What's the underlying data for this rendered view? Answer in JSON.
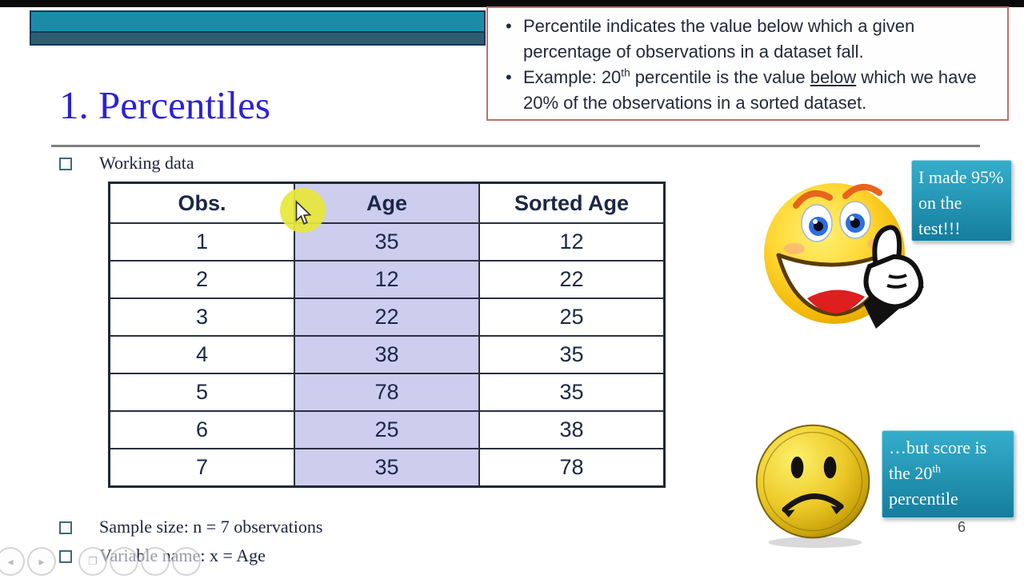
{
  "slide": {
    "title": "1. Percentiles",
    "page_number": "6",
    "definition_box": {
      "bullet1": "Percentile indicates the value below which a given percentage of observations in a dataset fall.",
      "bullet2_segments": [
        {
          "text": "Example: 20"
        },
        {
          "text": "th",
          "style": "sup"
        },
        {
          "text": " percentile is the value "
        },
        {
          "text": "below",
          "style": "underline"
        },
        {
          "text": " which we have 20% of the observations in a sorted dataset."
        }
      ]
    },
    "bullets": {
      "working_data": "Working data",
      "sample_size": "Sample size: n = 7 observations",
      "variable_name": "Variable name: x = Age"
    },
    "table": {
      "headers": [
        "Obs.",
        "Age",
        "Sorted Age"
      ],
      "rows": [
        [
          "1",
          "35",
          "12"
        ],
        [
          "2",
          "12",
          "22"
        ],
        [
          "3",
          "22",
          "25"
        ],
        [
          "4",
          "38",
          "35"
        ],
        [
          "5",
          "78",
          "35"
        ],
        [
          "6",
          "25",
          "38"
        ],
        [
          "7",
          "35",
          "78"
        ]
      ]
    },
    "callouts": {
      "happy_text": "I made 95% on the test!!!",
      "sad_segments": [
        {
          "text": "…but score is the 20"
        },
        {
          "text": "th",
          "style": "sup"
        },
        {
          "text": " percentile"
        }
      ]
    },
    "icons": {
      "happy": "happy-smiley-thumbs-up-icon",
      "sad": "sad-face-button-icon",
      "cursor": "mouse-pointer-icon",
      "highlight": "yellow-click-highlight"
    },
    "colors": {
      "title_blue": "#2b21d6",
      "banner_teal_top": "#1a8ca7",
      "banner_teal_bottom": "#2e5d6f",
      "banner_border": "#16365f",
      "definition_border": "#c0706a",
      "age_column_bg": "#cdcdee",
      "callout_teal": "#1d91b2",
      "highlight_yellow": "#e7e73a",
      "table_text": "#1b2745"
    }
  },
  "player_controls": {
    "items": [
      "previous",
      "next",
      "slides",
      "control-4",
      "control-5",
      "control-6"
    ]
  },
  "chart_data": {
    "type": "table",
    "title": "Working data",
    "columns": [
      "Obs.",
      "Age",
      "Sorted Age"
    ],
    "rows": [
      [
        1,
        35,
        12
      ],
      [
        2,
        12,
        22
      ],
      [
        3,
        22,
        25
      ],
      [
        4,
        38,
        35
      ],
      [
        5,
        78,
        35
      ],
      [
        6,
        25,
        38
      ],
      [
        7,
        35,
        78
      ]
    ],
    "notes": [
      "Sample size: n = 7 observations",
      "Variable name: x = Age"
    ]
  }
}
